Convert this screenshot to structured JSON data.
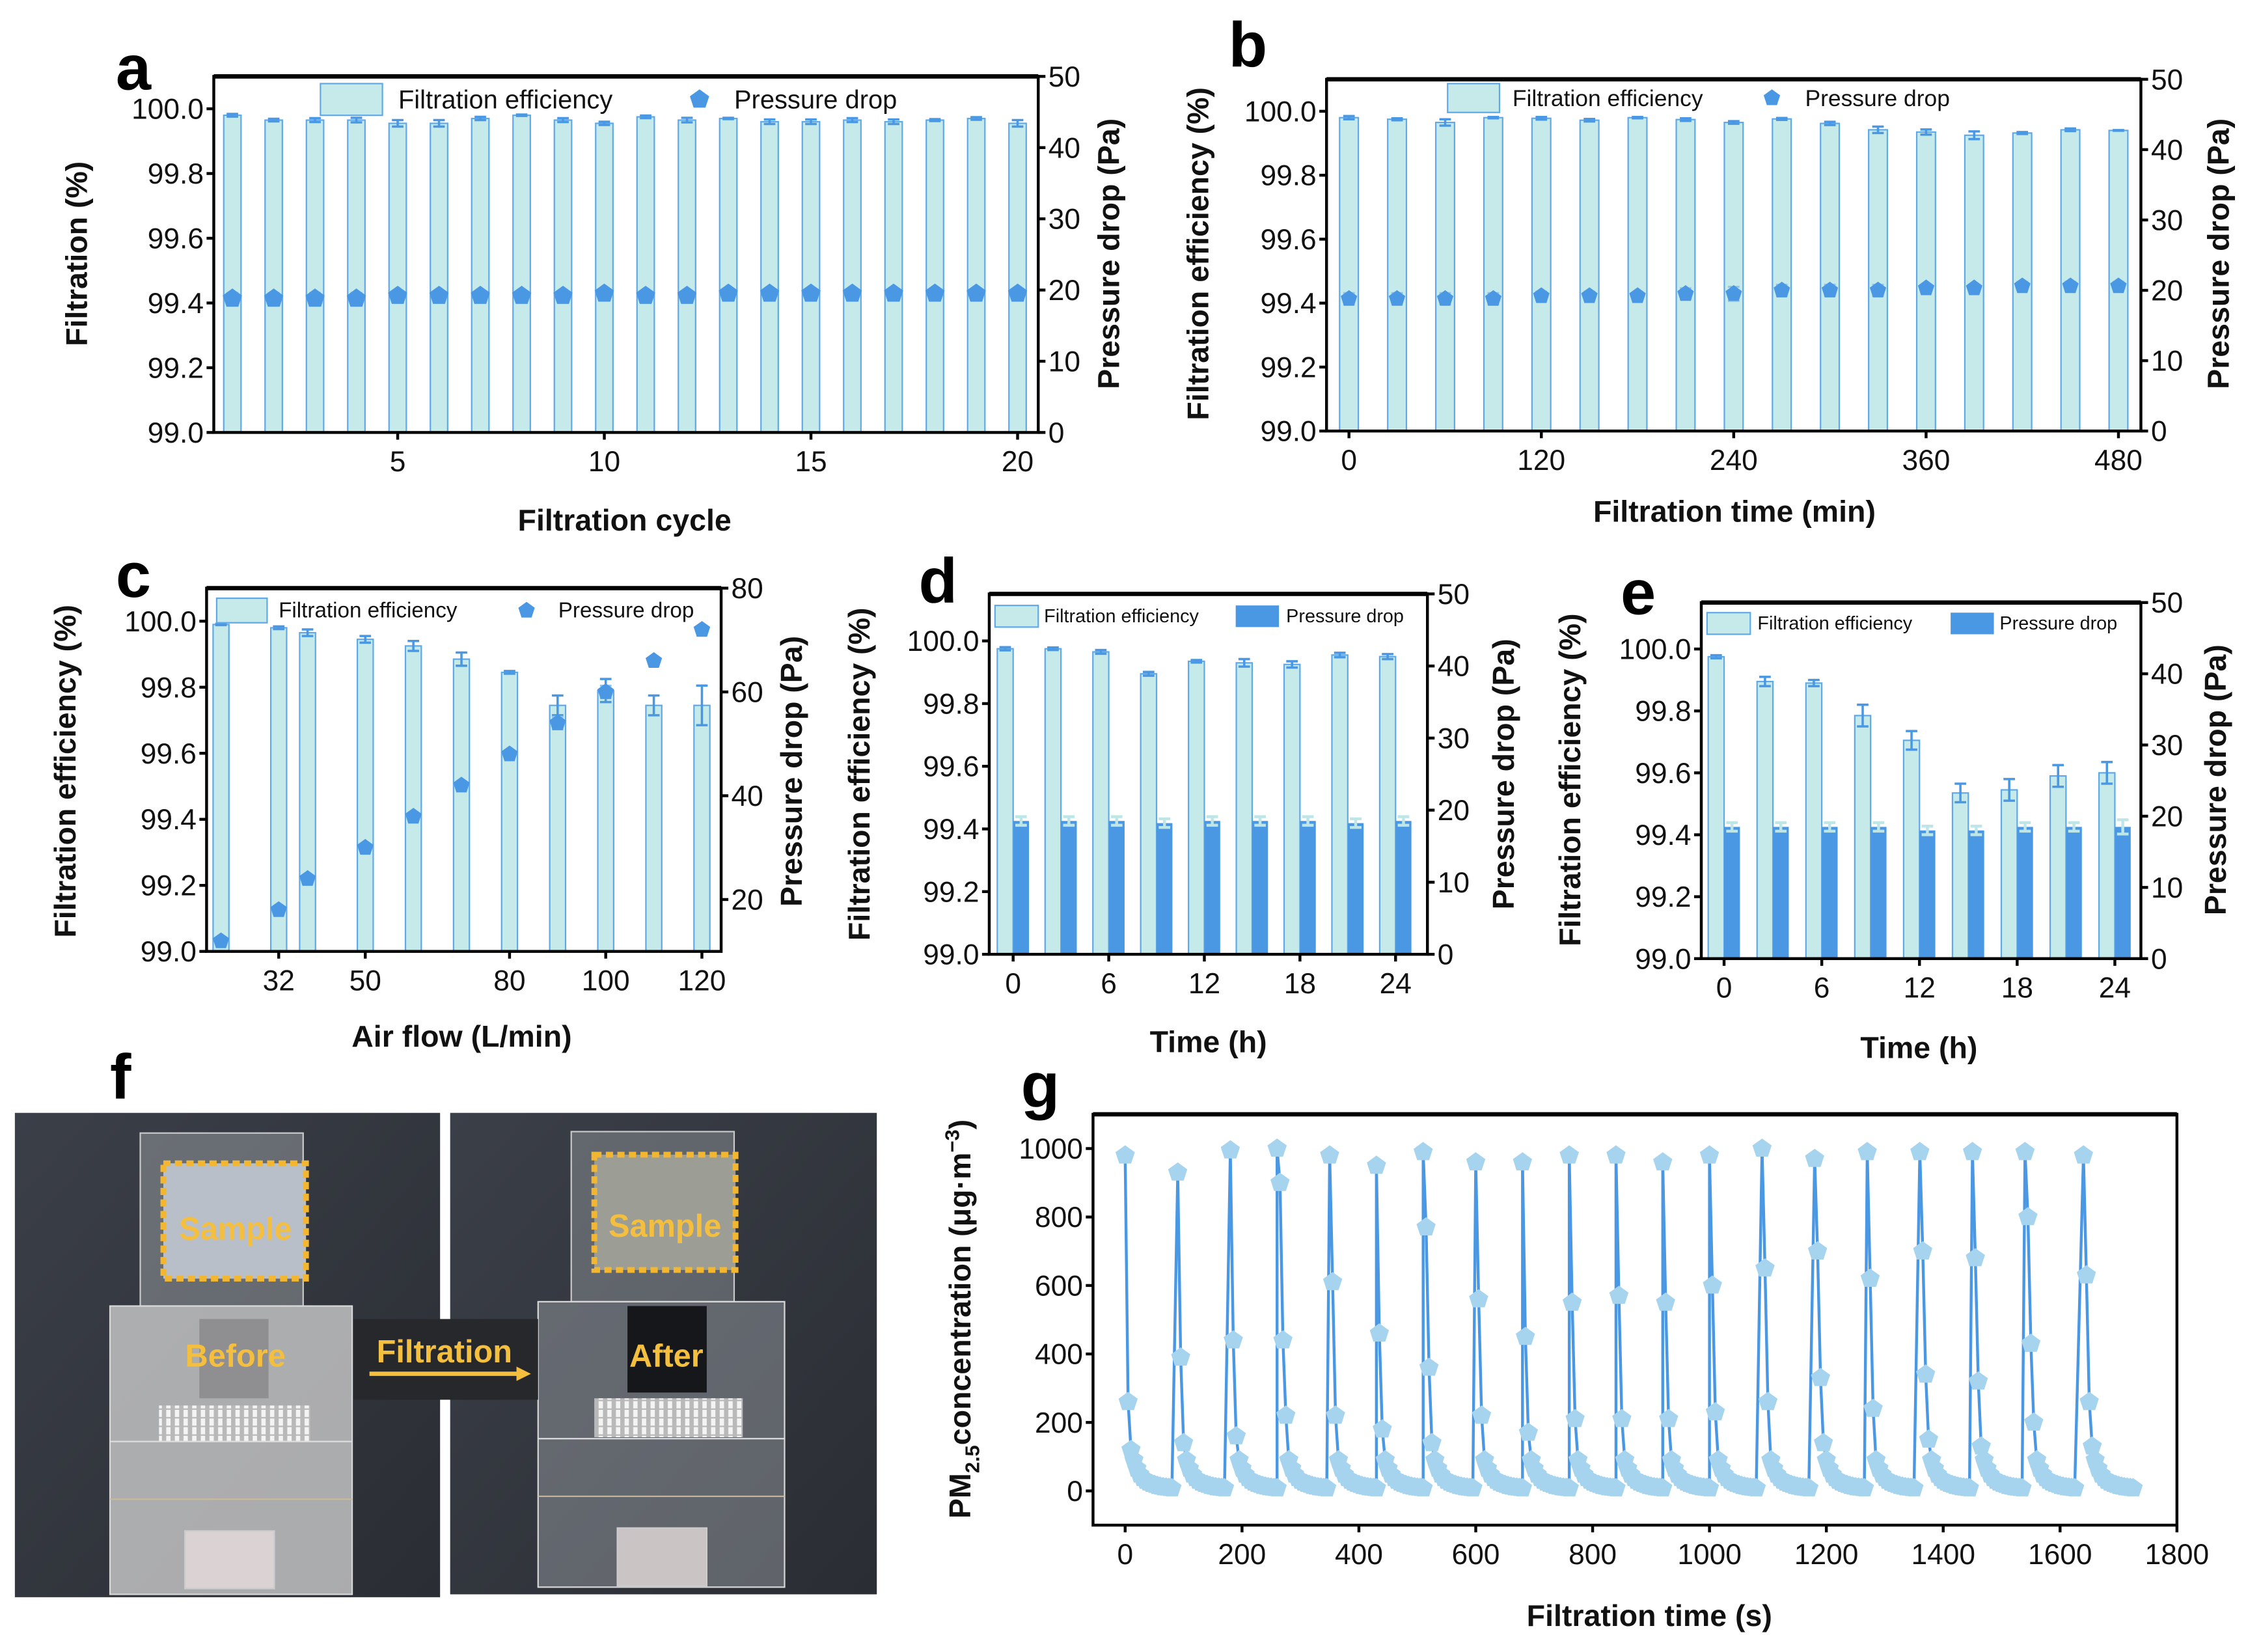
{
  "panel_letters": {
    "a": "a",
    "b": "b",
    "c": "c",
    "d": "d",
    "e": "e",
    "f": "f",
    "g": "g"
  },
  "colors": {
    "bar_fill": "#c6eaea",
    "bar_stroke": "#5fa9e8",
    "accent": "#4a98e4",
    "marker_light": "#a6d4ef",
    "photo_text": "#f4bf3e"
  },
  "photo": {
    "sample_before": "Sample",
    "sample_after": "Sample",
    "before": "Before",
    "after": "After",
    "arrow_label": "Filtration"
  },
  "chart_data": [
    {
      "id": "a",
      "type": "bar",
      "title": "",
      "xlabel": "Filtration cycle",
      "ylabel": "Filtration (%)",
      "y2label": "Pressure drop (Pa)",
      "xlim": [
        0.55,
        20.5
      ],
      "ylim": [
        99.0,
        100.1
      ],
      "y2lim": [
        0,
        50
      ],
      "xticks": [
        5,
        10,
        15,
        20
      ],
      "yticks": [
        99.0,
        99.2,
        99.4,
        99.6,
        99.8,
        100.0
      ],
      "y2ticks": [
        0,
        10,
        20,
        30,
        40,
        50
      ],
      "pressure_style": "marker",
      "legend": [
        "Filtration efficiency",
        "Pressure drop"
      ],
      "x": [
        1,
        2,
        3,
        4,
        5,
        6,
        7,
        8,
        9,
        10,
        11,
        12,
        13,
        14,
        15,
        16,
        17,
        18,
        19,
        20
      ],
      "efficiency": [
        99.98,
        99.965,
        99.965,
        99.965,
        99.955,
        99.955,
        99.97,
        99.98,
        99.965,
        99.955,
        99.975,
        99.965,
        99.97,
        99.96,
        99.96,
        99.965,
        99.96,
        99.965,
        99.97,
        99.955
      ],
      "efficiency_err": [
        0.004,
        0.004,
        0.006,
        0.007,
        0.01,
        0.01,
        0.005,
        0.002,
        0.006,
        0.005,
        0.004,
        0.007,
        0.002,
        0.007,
        0.007,
        0.006,
        0.007,
        0.003,
        0.004,
        0.01
      ],
      "pressure": [
        18.8,
        18.8,
        18.8,
        18.8,
        19.2,
        19.2,
        19.2,
        19.2,
        19.2,
        19.5,
        19.2,
        19.2,
        19.5,
        19.5,
        19.5,
        19.5,
        19.5,
        19.5,
        19.5,
        19.5
      ],
      "pressure_err": [
        0.8,
        0.8,
        0.8,
        0.8,
        0.3,
        0.3,
        0.3,
        0.3,
        0.3,
        0.6,
        0.3,
        0.3,
        0.6,
        0.6,
        0.6,
        0.6,
        0.6,
        0.6,
        0.6,
        0.6
      ]
    },
    {
      "id": "b",
      "type": "bar",
      "title": "",
      "xlabel": "Filtration time (min)",
      "ylabel": "Filtration efficiency (%)",
      "y2label": "Pressure drop (Pa)",
      "xlim": [
        -14,
        494
      ],
      "ylim": [
        99.0,
        100.1
      ],
      "y2lim": [
        0,
        50
      ],
      "xticks": [
        0,
        120,
        240,
        360,
        480
      ],
      "yticks": [
        99.0,
        99.2,
        99.4,
        99.6,
        99.8,
        100.0
      ],
      "y2ticks": [
        0,
        10,
        20,
        30,
        40,
        50
      ],
      "pressure_style": "marker",
      "legend": [
        "Filtration efficiency",
        "Pressure drop"
      ],
      "x": [
        0,
        30,
        60,
        90,
        120,
        150,
        180,
        210,
        240,
        270,
        300,
        330,
        360,
        390,
        420,
        450,
        480
      ],
      "efficiency": [
        99.98,
        99.975,
        99.965,
        99.98,
        99.978,
        99.972,
        99.98,
        99.974,
        99.965,
        99.976,
        99.962,
        99.942,
        99.935,
        99.925,
        99.932,
        99.942,
        99.94
      ],
      "efficiency_err": [
        0.005,
        0.003,
        0.01,
        0.002,
        0.004,
        0.004,
        0.002,
        0.004,
        0.004,
        0.003,
        0.005,
        0.01,
        0.008,
        0.012,
        0.003,
        0.004,
        0.001
      ],
      "pressure": [
        18.8,
        18.8,
        18.8,
        18.8,
        19.2,
        19.2,
        19.2,
        19.5,
        19.5,
        20.0,
        20.0,
        20.0,
        20.3,
        20.3,
        20.6,
        20.6,
        20.6
      ],
      "pressure_err": [
        0.8,
        0.8,
        0.8,
        0.8,
        0.6,
        0.6,
        0.3,
        0.8,
        1.0,
        0.8,
        0.8,
        0.8,
        0.5,
        0.3,
        0.6,
        0.6,
        0.6
      ]
    },
    {
      "id": "c",
      "type": "bar",
      "title": "",
      "xlabel": "Air flow (L/min)",
      "ylabel": "Filtration efficiency (%)",
      "y2label": "Pressure drop (Pa)",
      "xlim": [
        17,
        124
      ],
      "ylim": [
        99.0,
        100.1
      ],
      "y2lim": [
        10,
        80
      ],
      "xticks": [
        32,
        50,
        80,
        100,
        120
      ],
      "yticks": [
        99.0,
        99.2,
        99.4,
        99.6,
        99.8,
        100.0
      ],
      "y2ticks": [
        20,
        40,
        60,
        80
      ],
      "pressure_style": "marker",
      "legend": [
        "Filtration efficiency",
        "Pressure drop"
      ],
      "x": [
        20,
        32,
        38,
        50,
        60,
        70,
        80,
        90,
        100,
        110,
        120
      ],
      "efficiency": [
        99.99,
        99.98,
        99.965,
        99.945,
        99.925,
        99.885,
        99.845,
        99.745,
        99.79,
        99.745,
        99.745
      ],
      "efficiency_err": [
        0.002,
        0.004,
        0.01,
        0.01,
        0.015,
        0.02,
        0.004,
        0.03,
        0.035,
        0.03,
        0.06
      ],
      "pressure": [
        12,
        18,
        24,
        30,
        36,
        42,
        48,
        54,
        60,
        66,
        72
      ],
      "pressure_err": [
        0.5,
        0.5,
        0.5,
        0.5,
        0.5,
        0.5,
        0.5,
        1.2,
        1.2,
        0.5,
        0.5
      ]
    },
    {
      "id": "d",
      "type": "bar",
      "title": "",
      "xlabel": "Time (h)",
      "ylabel": "Filtration efficiency (%)",
      "y2label": "Pressure drop (Pa)",
      "xlim": [
        -1.5,
        26
      ],
      "ylim": [
        99.0,
        100.15
      ],
      "y2lim": [
        0,
        50
      ],
      "xticks": [
        0,
        6,
        12,
        18,
        24
      ],
      "yticks": [
        99.0,
        99.2,
        99.4,
        99.6,
        99.8,
        100.0
      ],
      "y2ticks": [
        0,
        10,
        20,
        30,
        40,
        50
      ],
      "pressure_style": "bar",
      "legend": [
        "Filtration efficiency",
        "Pressure drop"
      ],
      "x": [
        0,
        3,
        6,
        9,
        12,
        15,
        18,
        21,
        24
      ],
      "efficiency": [
        99.975,
        99.975,
        99.965,
        99.895,
        99.935,
        99.93,
        99.925,
        99.955,
        99.95
      ],
      "efficiency_err": [
        0.005,
        0.004,
        0.006,
        0.006,
        0.004,
        0.012,
        0.01,
        0.007,
        0.008
      ],
      "pressure": [
        18.5,
        18.5,
        18.5,
        18.2,
        18.5,
        18.5,
        18.5,
        18.2,
        18.5
      ],
      "pressure_err": [
        0.6,
        0.6,
        0.6,
        0.6,
        0.6,
        0.6,
        0.6,
        0.6,
        0.6
      ]
    },
    {
      "id": "e",
      "type": "bar",
      "title": "",
      "xlabel": "Time (h)",
      "ylabel": "Filtration efficiency (%)",
      "y2label": "Pressure drop (Pa)",
      "xlim": [
        -1.4,
        25.6
      ],
      "ylim": [
        99.0,
        100.15
      ],
      "y2lim": [
        0,
        50
      ],
      "xticks": [
        0,
        6,
        12,
        18,
        24
      ],
      "yticks": [
        99.0,
        99.2,
        99.4,
        99.6,
        99.8,
        100.0
      ],
      "y2ticks": [
        0,
        10,
        20,
        30,
        40,
        50
      ],
      "pressure_style": "bar",
      "legend": [
        "Filtration efficiency",
        "Pressure drop"
      ],
      "x": [
        0,
        3,
        6,
        9,
        12,
        15,
        18,
        21,
        24
      ],
      "efficiency": [
        99.975,
        99.895,
        99.89,
        99.785,
        99.705,
        99.535,
        99.545,
        99.59,
        99.6
      ],
      "efficiency_err": [
        0.005,
        0.015,
        0.01,
        0.035,
        0.03,
        0.03,
        0.035,
        0.035,
        0.035
      ],
      "pressure": [
        18.5,
        18.5,
        18.5,
        18.5,
        18.0,
        18.0,
        18.5,
        18.5,
        18.5
      ],
      "pressure_err": [
        0.6,
        0.6,
        0.6,
        0.6,
        0.6,
        0.6,
        0.6,
        0.6,
        1.0
      ]
    },
    {
      "id": "g",
      "type": "line",
      "title": "",
      "xlabel": "Filtration time (s)",
      "ylabel_parts": [
        "PM",
        "2.5",
        "concentration (μg·m",
        "−3",
        ")"
      ],
      "xlim": [
        -55,
        1800
      ],
      "ylim": [
        -100,
        1100
      ],
      "xticks": [
        0,
        200,
        400,
        600,
        800,
        1000,
        1200,
        1400,
        1600,
        1800
      ],
      "yticks": [
        0,
        200,
        400,
        600,
        800,
        1000
      ],
      "sample_interval_s": 5,
      "tail": [
        90,
        65,
        48,
        38,
        30,
        25,
        21,
        18,
        15,
        13,
        11,
        10,
        9,
        8
      ],
      "cycles": [
        {
          "t0": 0,
          "head": [
            980,
            260,
            120
          ]
        },
        {
          "t0": 90,
          "head": [
            930,
            390,
            140
          ]
        },
        {
          "t0": 180,
          "head": [
            995,
            440,
            160
          ]
        },
        {
          "t0": 260,
          "head": [
            1000,
            900,
            440,
            220
          ]
        },
        {
          "t0": 350,
          "head": [
            980,
            610,
            220
          ]
        },
        {
          "t0": 430,
          "head": [
            950,
            460,
            180
          ]
        },
        {
          "t0": 510,
          "head": [
            990,
            770,
            360,
            140
          ]
        },
        {
          "t0": 600,
          "head": [
            960,
            560,
            220
          ]
        },
        {
          "t0": 680,
          "head": [
            960,
            450,
            170
          ]
        },
        {
          "t0": 760,
          "head": [
            980,
            550,
            210
          ]
        },
        {
          "t0": 840,
          "head": [
            980,
            570,
            210
          ]
        },
        {
          "t0": 920,
          "head": [
            960,
            550,
            210
          ]
        },
        {
          "t0": 1000,
          "head": [
            980,
            600,
            230
          ]
        },
        {
          "t0": 1090,
          "head": [
            1000,
            650,
            260
          ]
        },
        {
          "t0": 1180,
          "head": [
            970,
            700,
            330,
            140
          ]
        },
        {
          "t0": 1270,
          "head": [
            990,
            620,
            240
          ]
        },
        {
          "t0": 1360,
          "head": [
            990,
            700,
            340,
            150
          ]
        },
        {
          "t0": 1450,
          "head": [
            990,
            680,
            320,
            130
          ]
        },
        {
          "t0": 1540,
          "head": [
            990,
            800,
            430,
            200
          ]
        },
        {
          "t0": 1640,
          "head": [
            980,
            630,
            260,
            130
          ]
        }
      ]
    }
  ]
}
